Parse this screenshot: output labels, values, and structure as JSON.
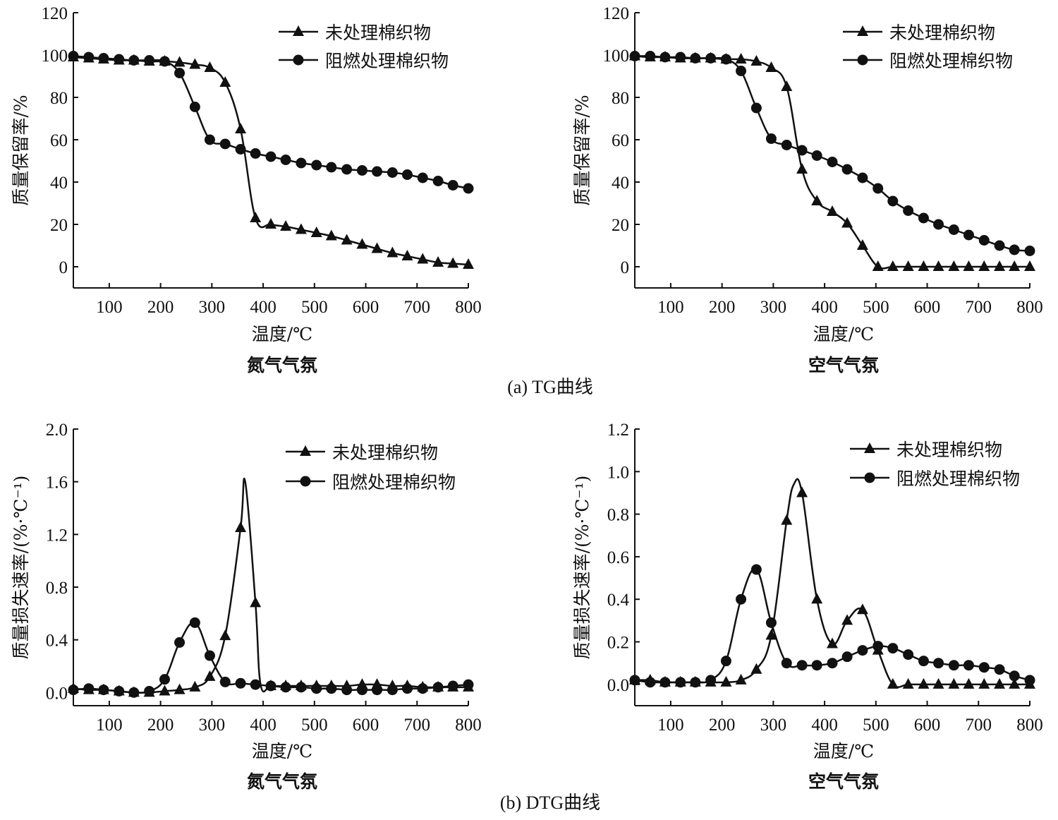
{
  "captions": {
    "tg": "(a) TG曲线",
    "dtg": "(b) DTG曲线"
  },
  "colors": {
    "line": "#111111"
  },
  "chart_data": [
    {
      "type": "line",
      "xlabel": "温度/℃",
      "atmosphere": "氮气气氛",
      "ylabel": "质量保留率/%",
      "xlim": [
        30,
        800
      ],
      "ylim": [
        -10,
        120
      ],
      "xticks": [
        100,
        200,
        300,
        400,
        500,
        600,
        700,
        800
      ],
      "yticks": [
        0,
        20,
        40,
        60,
        80,
        100,
        120
      ],
      "ytick_decimals": 0,
      "grid": false,
      "legend": "top-right",
      "series": [
        {
          "name": "未处理棉织物",
          "marker": "triangle",
          "x": [
            30,
            60,
            89,
            119,
            148,
            178,
            208,
            237,
            267,
            296,
            326,
            356,
            385,
            415,
            444,
            474,
            504,
            533,
            563,
            593,
            622,
            652,
            681,
            711,
            741,
            770,
            800
          ],
          "y": [
            99,
            98.5,
            98,
            97.5,
            97.5,
            97,
            97,
            96.5,
            95.5,
            94,
            87,
            65,
            23,
            20,
            19,
            17.5,
            16,
            14.5,
            12.5,
            10.5,
            8.5,
            6.5,
            5,
            3.5,
            2,
            1.5,
            1
          ]
        },
        {
          "name": "阻燃处理棉织物",
          "marker": "circle",
          "x": [
            30,
            60,
            89,
            119,
            148,
            178,
            208,
            237,
            267,
            296,
            326,
            356,
            385,
            415,
            444,
            474,
            504,
            533,
            563,
            593,
            622,
            652,
            681,
            711,
            741,
            770,
            800
          ],
          "y": [
            99.5,
            99,
            98.5,
            98,
            97.5,
            97.5,
            97,
            91.5,
            75.5,
            60,
            58,
            55.5,
            53.5,
            52,
            50.5,
            49,
            48,
            47,
            46,
            45.5,
            45,
            44.5,
            43.5,
            42,
            40.5,
            38.5,
            37
          ]
        }
      ]
    },
    {
      "type": "line",
      "xlabel": "温度/℃",
      "atmosphere": "空气气氛",
      "ylabel": "质量保留率/%",
      "xlim": [
        30,
        800
      ],
      "ylim": [
        -10,
        120
      ],
      "xticks": [
        100,
        200,
        300,
        400,
        500,
        600,
        700,
        800
      ],
      "yticks": [
        0,
        20,
        40,
        60,
        80,
        100,
        120
      ],
      "ytick_decimals": 0,
      "grid": false,
      "legend": "top-right",
      "series": [
        {
          "name": "未处理棉织物",
          "marker": "triangle",
          "x": [
            30,
            60,
            89,
            119,
            148,
            178,
            208,
            237,
            267,
            296,
            326,
            356,
            385,
            415,
            444,
            474,
            504,
            533,
            563,
            593,
            622,
            652,
            681,
            711,
            741,
            770,
            800
          ],
          "y": [
            99.5,
            99,
            99,
            98.5,
            98.5,
            98.5,
            98,
            98,
            97,
            94,
            85,
            46,
            31,
            26,
            20.5,
            10,
            0,
            0,
            0,
            0,
            0,
            0,
            0,
            0,
            0,
            0,
            0
          ]
        },
        {
          "name": "阻燃处理棉织物",
          "marker": "circle",
          "x": [
            30,
            60,
            89,
            119,
            148,
            178,
            208,
            237,
            267,
            296,
            326,
            356,
            385,
            415,
            444,
            474,
            504,
            533,
            563,
            593,
            622,
            652,
            681,
            711,
            741,
            770,
            800
          ],
          "y": [
            99.5,
            99.5,
            99,
            99,
            98.5,
            98.5,
            98,
            92.5,
            75,
            60.5,
            57.5,
            55,
            52.5,
            49.5,
            46,
            42,
            37,
            31,
            26.5,
            23,
            20,
            17.5,
            15,
            12.5,
            10,
            8,
            7.5
          ]
        }
      ]
    },
    {
      "type": "line",
      "xlabel": "温度/℃",
      "atmosphere": "氮气气氛",
      "ylabel": "质量损失速率/(%·℃⁻¹)",
      "xlim": [
        30,
        800
      ],
      "ylim": [
        -0.1,
        2.0
      ],
      "xticks": [
        100,
        200,
        300,
        400,
        500,
        600,
        700,
        800
      ],
      "yticks": [
        0.0,
        0.4,
        0.8,
        1.2,
        1.6,
        2.0
      ],
      "ytick_decimals": 1,
      "grid": false,
      "legend": "top-right",
      "series": [
        {
          "name": "未处理棉织物",
          "marker": "triangle",
          "unmarked_x": [
            365,
            395
          ],
          "x": [
            30,
            60,
            89,
            119,
            148,
            178,
            208,
            237,
            267,
            296,
            326,
            356,
            365,
            385,
            395,
            415,
            444,
            474,
            504,
            533,
            563,
            593,
            622,
            652,
            681,
            711,
            741,
            770,
            800
          ],
          "y": [
            0.03,
            0.02,
            0.02,
            0.01,
            0.0,
            0.0,
            0.01,
            0.02,
            0.04,
            0.12,
            0.43,
            1.25,
            1.6,
            0.68,
            0.06,
            0.05,
            0.05,
            0.05,
            0.05,
            0.05,
            0.05,
            0.06,
            0.06,
            0.05,
            0.05,
            0.04,
            0.04,
            0.04,
            0.04
          ]
        },
        {
          "name": "阻燃处理棉织物",
          "marker": "circle",
          "x": [
            30,
            60,
            89,
            119,
            148,
            178,
            208,
            237,
            267,
            296,
            326,
            356,
            385,
            415,
            444,
            474,
            504,
            533,
            563,
            593,
            622,
            652,
            681,
            711,
            741,
            770,
            800
          ],
          "y": [
            0.02,
            0.03,
            0.02,
            0.01,
            0.0,
            0.01,
            0.1,
            0.38,
            0.53,
            0.28,
            0.08,
            0.07,
            0.06,
            0.05,
            0.04,
            0.04,
            0.03,
            0.03,
            0.02,
            0.02,
            0.02,
            0.02,
            0.03,
            0.03,
            0.04,
            0.05,
            0.06
          ]
        }
      ]
    },
    {
      "type": "line",
      "xlabel": "温度/℃",
      "atmosphere": "空气气氛",
      "ylabel": "质量损失速率/(%·℃⁻¹)",
      "xlim": [
        30,
        800
      ],
      "ylim": [
        -0.1,
        1.2
      ],
      "xticks": [
        100,
        200,
        300,
        400,
        500,
        600,
        700,
        800
      ],
      "yticks": [
        0.0,
        0.2,
        0.4,
        0.6,
        0.8,
        1.0,
        1.2
      ],
      "ytick_decimals": 1,
      "grid": false,
      "legend": "top-right",
      "series": [
        {
          "name": "未处理棉织物",
          "marker": "triangle",
          "unmarked_x": [
            340
          ],
          "x": [
            30,
            60,
            89,
            119,
            148,
            178,
            208,
            237,
            267,
            296,
            326,
            340,
            356,
            385,
            415,
            444,
            474,
            504,
            533,
            563,
            593,
            622,
            652,
            681,
            711,
            741,
            770,
            800
          ],
          "y": [
            0.02,
            0.02,
            0.01,
            0.01,
            0.01,
            0.01,
            0.01,
            0.02,
            0.07,
            0.23,
            0.77,
            0.94,
            0.9,
            0.4,
            0.19,
            0.3,
            0.35,
            0.16,
            0.0,
            0.0,
            0.0,
            0.0,
            0.0,
            0.0,
            0.0,
            0.0,
            0.0,
            0.0
          ]
        },
        {
          "name": "阻燃处理棉织物",
          "marker": "circle",
          "x": [
            30,
            60,
            89,
            119,
            148,
            178,
            208,
            237,
            267,
            296,
            326,
            356,
            385,
            415,
            444,
            474,
            504,
            533,
            563,
            593,
            622,
            652,
            681,
            711,
            741,
            770,
            800
          ],
          "y": [
            0.02,
            0.01,
            0.01,
            0.01,
            0.01,
            0.02,
            0.11,
            0.4,
            0.54,
            0.29,
            0.1,
            0.09,
            0.09,
            0.1,
            0.13,
            0.16,
            0.18,
            0.17,
            0.14,
            0.11,
            0.1,
            0.09,
            0.09,
            0.08,
            0.07,
            0.04,
            0.02
          ]
        }
      ]
    }
  ]
}
